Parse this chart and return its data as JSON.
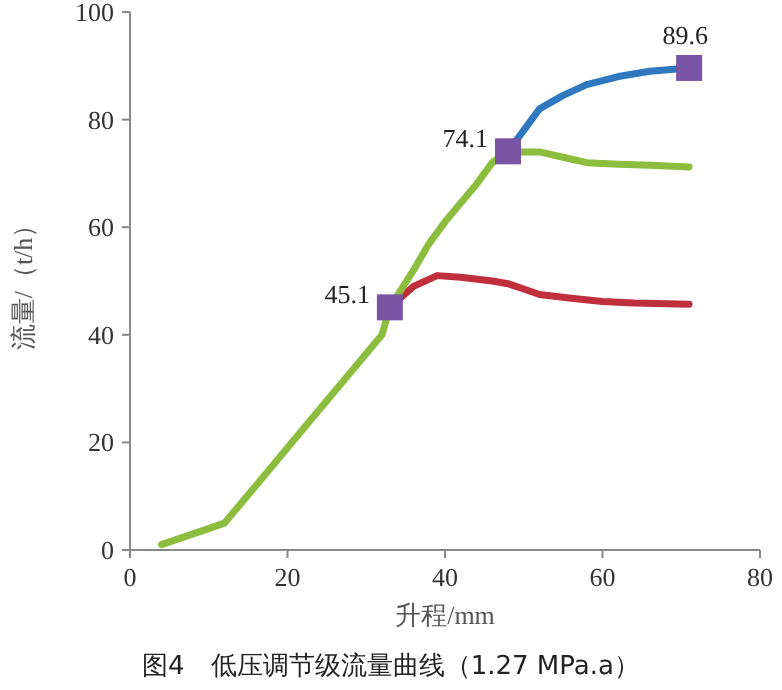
{
  "chart_data": {
    "type": "line",
    "xlabel": "升程/mm",
    "ylabel": "流量/（t/h）",
    "annotations": [
      "图4　低压调节级流量曲线（1.27 MPa.a）"
    ],
    "xlim": [
      0,
      80
    ],
    "xticks": [
      0,
      20,
      40,
      60,
      80
    ],
    "ylim": [
      0,
      100
    ],
    "yticks": [
      0,
      20,
      40,
      60,
      80,
      100
    ],
    "grid": false,
    "marker": "none",
    "line_style": "solid",
    "series": [
      {
        "color": "#c0303c",
        "x": [
          33,
          36,
          39,
          42,
          46,
          48,
          50,
          52,
          56,
          60,
          64,
          71
        ],
        "values": [
          45.1,
          49,
          51,
          50.7,
          50,
          49.5,
          48.5,
          47.5,
          46.8,
          46.2,
          45.9,
          45.7
        ]
      },
      {
        "color": "#2f78c0",
        "x": [
          48,
          50,
          52,
          55,
          58,
          62,
          66,
          71
        ],
        "values": [
          74.1,
          78,
          82,
          84.5,
          86.5,
          88,
          89,
          89.6
        ]
      },
      {
        "color": "#8cbd3f",
        "x": [
          4,
          8,
          12,
          16,
          20,
          24,
          28,
          32,
          33,
          36,
          38,
          40,
          44,
          46,
          48,
          50,
          52,
          55,
          58,
          62,
          66,
          71
        ],
        "values": [
          1,
          3,
          5,
          12,
          19,
          26,
          33,
          40,
          45.1,
          52,
          57,
          61,
          68,
          72,
          74.1,
          74,
          74,
          73,
          72,
          71.7,
          71.5,
          71.2
        ]
      },
      {
        "type": "scatter",
        "marker": "square",
        "color": "#7a55a5",
        "x": [
          33,
          48,
          71
        ],
        "values": [
          45.1,
          74.1,
          89.6
        ],
        "value_labels": [
          "45.1",
          "74.1",
          "89.6"
        ]
      }
    ]
  }
}
